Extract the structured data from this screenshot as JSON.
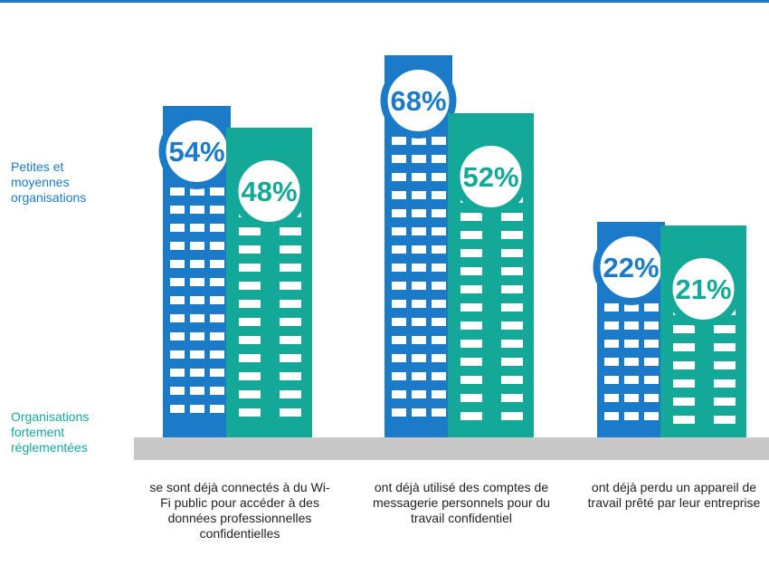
{
  "chart_data": {
    "type": "bar",
    "categories": [
      "se sont déjà connectés à du Wi-Fi public pour accéder à des données professionnelles confidentielles",
      "ont déjà utilisé des comptes de messagerie personnels pour du travail confidentiel",
      "ont déjà perdu un appareil de travail prêté par leur entreprise"
    ],
    "series": [
      {
        "name": "Petites et moyennes organisations",
        "color": "#1b7bc8",
        "values": [
          54,
          68,
          22
        ],
        "value_labels": [
          "54%",
          "68%",
          "22%"
        ]
      },
      {
        "name": "Organisations fortement réglementées",
        "color": "#14a899",
        "values": [
          48,
          52,
          21
        ],
        "value_labels": [
          "48%",
          "52%",
          "21%"
        ]
      }
    ]
  }
}
